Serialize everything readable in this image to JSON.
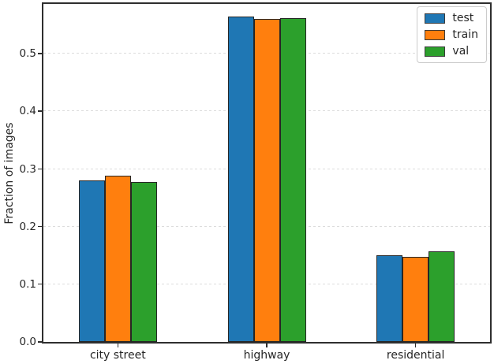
{
  "chart_data": {
    "type": "bar",
    "title": "",
    "categories": [
      "city street",
      "highway",
      "residential"
    ],
    "series": [
      {
        "name": "test",
        "color": "#1f77b4",
        "values": [
          0.28,
          0.565,
          0.151
        ]
      },
      {
        "name": "train",
        "color": "#ff7f0e",
        "values": [
          0.288,
          0.56,
          0.148
        ]
      },
      {
        "name": "val",
        "color": "#2ca02c",
        "values": [
          0.277,
          0.562,
          0.157
        ]
      }
    ],
    "xlabel": "",
    "ylabel": "Fraction of images",
    "yticks": [
      "0.0",
      "0.1",
      "0.2",
      "0.3",
      "0.4",
      "0.5"
    ],
    "ytick_values": [
      0.0,
      0.1,
      0.2,
      0.3,
      0.4,
      0.5
    ],
    "ylim": [
      0,
      0.5865
    ],
    "grid": "horizontal-dotted",
    "gridline_color": "#dcdcdc",
    "bar_edge_color": "#262626",
    "legend_position": "upper-right",
    "legend_entries": [
      "test",
      "train",
      "val"
    ]
  }
}
